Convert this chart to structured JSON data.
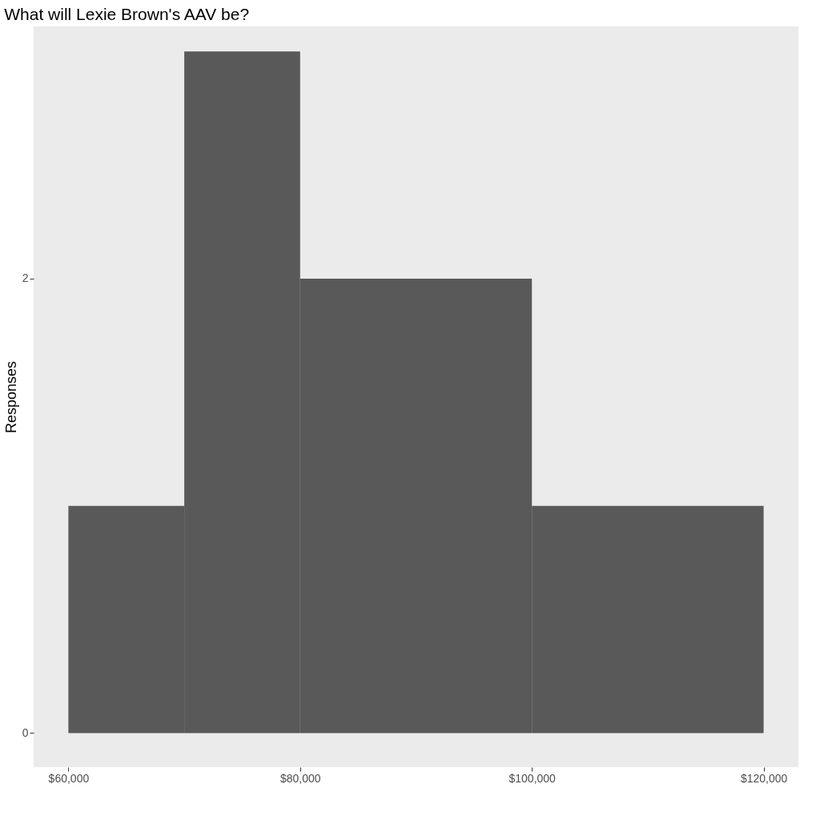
{
  "chart_data": {
    "type": "histogram",
    "title": "What will Lexie Brown's AAV be?",
    "ylabel": "Responses",
    "bins": [
      60000,
      70000,
      80000,
      100000,
      120000
    ],
    "values": [
      1,
      3,
      2,
      1
    ],
    "color": "#595959",
    "xlim": [
      57000,
      123000
    ],
    "ylim": [
      -0.15,
      3.11
    ],
    "xticks": [
      {
        "value": 60000,
        "label": "$60,000"
      },
      {
        "value": 80000,
        "label": "$80,000"
      },
      {
        "value": 100000,
        "label": "$100,000"
      },
      {
        "value": 120000,
        "label": "$120,000"
      }
    ],
    "yticks": [
      0,
      2
    ],
    "grid": false
  }
}
